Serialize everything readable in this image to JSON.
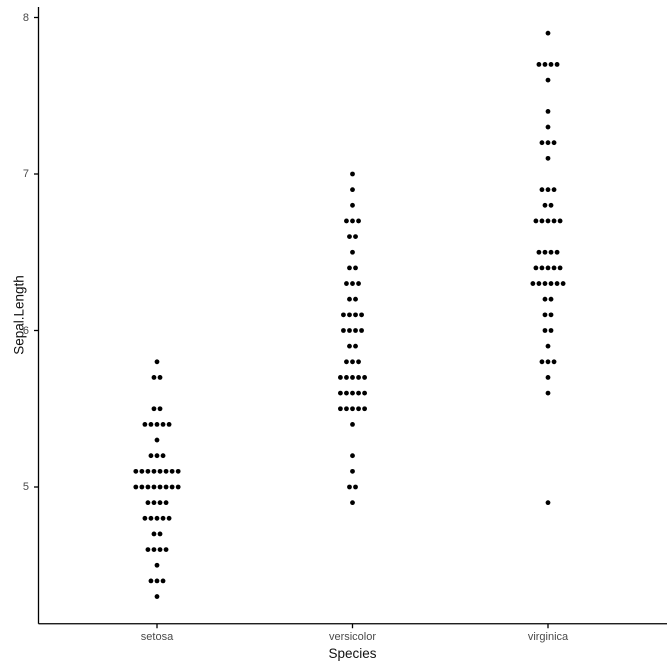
{
  "chart_data": {
    "type": "scatter",
    "subtype": "dot-strip-plot",
    "title": "",
    "xlabel": "Species",
    "ylabel": "Sepal.Length",
    "categories": [
      "setosa",
      "versicolor",
      "virginica"
    ],
    "y_ticks": [
      "8",
      "7",
      "6",
      "5"
    ],
    "y_tick_values": [
      8,
      7,
      6,
      5
    ],
    "ylim": [
      4.15,
      8.05
    ],
    "grid": false,
    "legend": false,
    "binwidth": 0.1,
    "dot_color": "#000000",
    "axis_color": "#000000",
    "tick_label_color": "#4a4a4a",
    "axis_title_color": "#111111",
    "background_color": "#ffffff",
    "series": [
      {
        "name": "setosa",
        "stacks": [
          [
            4.3,
            1
          ],
          [
            4.4,
            3
          ],
          [
            4.5,
            1
          ],
          [
            4.6,
            4
          ],
          [
            4.7,
            2
          ],
          [
            4.8,
            5
          ],
          [
            4.9,
            4
          ],
          [
            5.0,
            8
          ],
          [
            5.1,
            8
          ],
          [
            5.2,
            3
          ],
          [
            5.3,
            1
          ],
          [
            5.4,
            5
          ],
          [
            5.5,
            2
          ],
          [
            5.7,
            2
          ],
          [
            5.8,
            1
          ]
        ]
      },
      {
        "name": "versicolor",
        "stacks": [
          [
            4.9,
            1
          ],
          [
            5.0,
            2
          ],
          [
            5.1,
            1
          ],
          [
            5.2,
            1
          ],
          [
            5.4,
            1
          ],
          [
            5.5,
            5
          ],
          [
            5.6,
            5
          ],
          [
            5.7,
            5
          ],
          [
            5.8,
            3
          ],
          [
            5.9,
            2
          ],
          [
            6.0,
            4
          ],
          [
            6.1,
            4
          ],
          [
            6.2,
            2
          ],
          [
            6.3,
            3
          ],
          [
            6.4,
            2
          ],
          [
            6.5,
            1
          ],
          [
            6.6,
            2
          ],
          [
            6.7,
            3
          ],
          [
            6.8,
            1
          ],
          [
            6.9,
            1
          ],
          [
            7.0,
            1
          ]
        ]
      },
      {
        "name": "virginica",
        "stacks": [
          [
            4.9,
            1
          ],
          [
            5.6,
            1
          ],
          [
            5.7,
            1
          ],
          [
            5.8,
            3
          ],
          [
            5.9,
            1
          ],
          [
            6.0,
            2
          ],
          [
            6.1,
            2
          ],
          [
            6.2,
            2
          ],
          [
            6.3,
            6
          ],
          [
            6.4,
            5
          ],
          [
            6.5,
            4
          ],
          [
            6.7,
            5
          ],
          [
            6.8,
            2
          ],
          [
            6.9,
            3
          ],
          [
            7.1,
            1
          ],
          [
            7.2,
            3
          ],
          [
            7.3,
            1
          ],
          [
            7.4,
            1
          ],
          [
            7.6,
            1
          ],
          [
            7.7,
            4
          ],
          [
            7.9,
            1
          ]
        ]
      }
    ]
  }
}
